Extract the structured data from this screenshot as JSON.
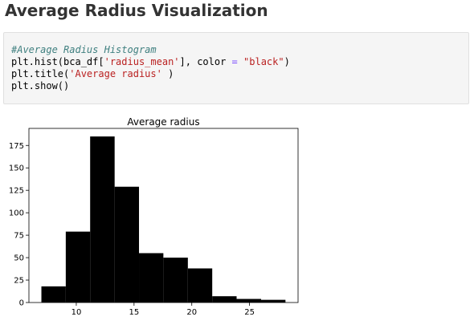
{
  "page": {
    "heading": "Average Radius Visualization"
  },
  "code_cell": {
    "lines": [
      [
        {
          "t": "#Average Radius Histogram",
          "c": "comment"
        }
      ],
      [
        {
          "t": "plt.hist(bca_df[",
          "c": ""
        },
        {
          "t": "'radius_mean'",
          "c": "string"
        },
        {
          "t": "], color ",
          "c": ""
        },
        {
          "t": "=",
          "c": "op"
        },
        {
          "t": " ",
          "c": ""
        },
        {
          "t": "\"black\"",
          "c": "string"
        },
        {
          "t": ")",
          "c": ""
        }
      ],
      [
        {
          "t": "plt.title(",
          "c": ""
        },
        {
          "t": "'Average radius'",
          "c": "string"
        },
        {
          "t": " )",
          "c": ""
        }
      ],
      [
        {
          "t": "plt.show()",
          "c": ""
        }
      ]
    ]
  },
  "chart_data": {
    "type": "bar",
    "title": "Average radius",
    "xlabel": "",
    "ylabel": "",
    "bar_color": "#000000",
    "bin_edges": [
      6.98,
      9.09,
      11.2,
      13.32,
      15.43,
      17.54,
      19.66,
      21.77,
      23.88,
      26.0,
      28.11
    ],
    "values": [
      18,
      79,
      185,
      129,
      55,
      50,
      38,
      7,
      4,
      3
    ],
    "xlim": [
      5.9,
      29.2
    ],
    "ylim": [
      0,
      194
    ],
    "xticks": [
      10,
      15,
      20,
      25
    ],
    "yticks": [
      0,
      25,
      50,
      75,
      100,
      125,
      150,
      175
    ],
    "grid": false
  }
}
